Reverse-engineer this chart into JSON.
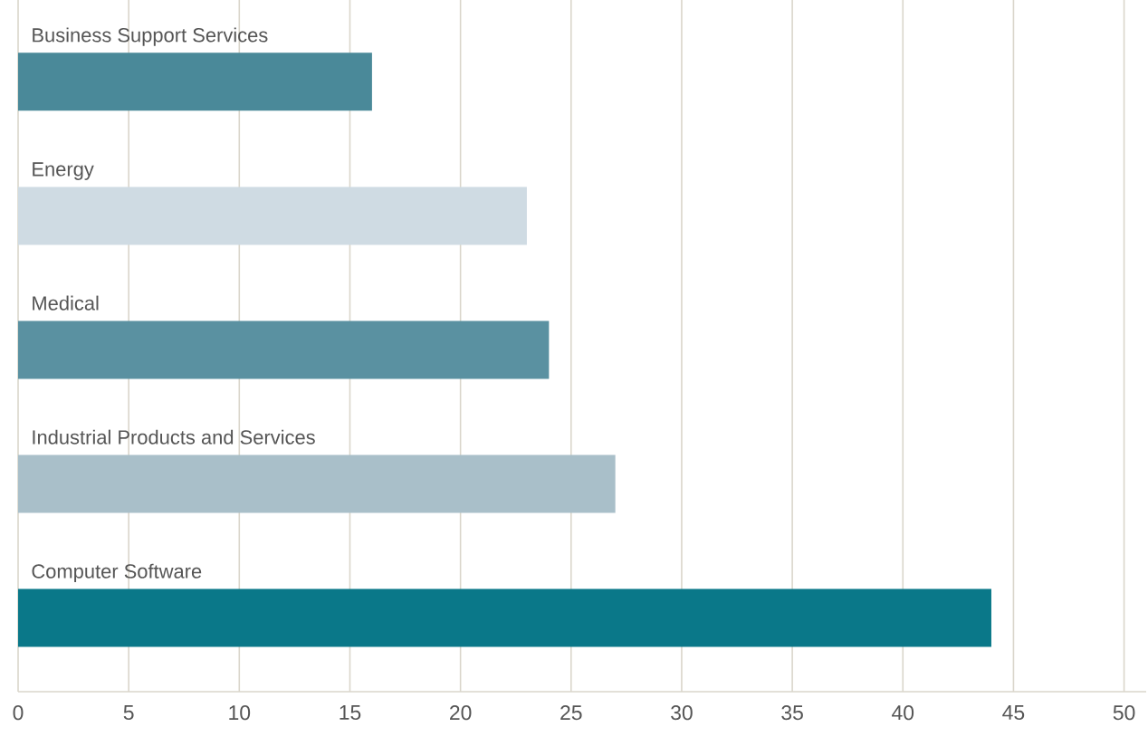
{
  "chart_data": {
    "type": "bar",
    "orientation": "horizontal",
    "categories": [
      "Business Support Services",
      "Energy",
      "Medical",
      "Industrial Products and Services",
      "Computer Software"
    ],
    "values": [
      16,
      23,
      24,
      27,
      44
    ],
    "colors": [
      "#4a8999",
      "#cfdbe3",
      "#5a91a1",
      "#a9bfc9",
      "#0a7889"
    ],
    "xlim": [
      0,
      51
    ],
    "xticks": [
      0,
      5,
      10,
      15,
      20,
      25,
      30,
      35,
      40,
      45,
      50
    ],
    "grid": "x"
  }
}
